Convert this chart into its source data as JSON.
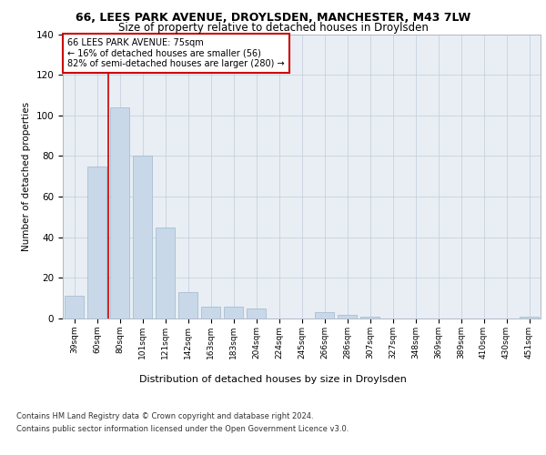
{
  "title1": "66, LEES PARK AVENUE, DROYLSDEN, MANCHESTER, M43 7LW",
  "title2": "Size of property relative to detached houses in Droylsden",
  "chart_xlabel": "Distribution of detached houses by size in Droylsden",
  "ylabel": "Number of detached properties",
  "categories": [
    "39sqm",
    "60sqm",
    "80sqm",
    "101sqm",
    "121sqm",
    "142sqm",
    "163sqm",
    "183sqm",
    "204sqm",
    "224sqm",
    "245sqm",
    "266sqm",
    "286sqm",
    "307sqm",
    "327sqm",
    "348sqm",
    "369sqm",
    "389sqm",
    "410sqm",
    "430sqm",
    "451sqm"
  ],
  "values": [
    11,
    75,
    104,
    80,
    45,
    13,
    6,
    6,
    5,
    0,
    0,
    3,
    2,
    1,
    0,
    0,
    0,
    0,
    0,
    0,
    1
  ],
  "bar_color": "#c8d8e8",
  "bar_edge_color": "#a0b8cc",
  "vline_x": 1.5,
  "vline_color": "#cc0000",
  "annotation_title": "66 LEES PARK AVENUE: 75sqm",
  "annotation_line1": "← 16% of detached houses are smaller (56)",
  "annotation_line2": "82% of semi-detached houses are larger (280) →",
  "annotation_box_color": "#ffffff",
  "annotation_box_edge": "#cc0000",
  "ylim": [
    0,
    140
  ],
  "yticks": [
    0,
    20,
    40,
    60,
    80,
    100,
    120,
    140
  ],
  "footer1": "Contains HM Land Registry data © Crown copyright and database right 2024.",
  "footer2": "Contains public sector information licensed under the Open Government Licence v3.0.",
  "bg_color": "#e8eef4"
}
